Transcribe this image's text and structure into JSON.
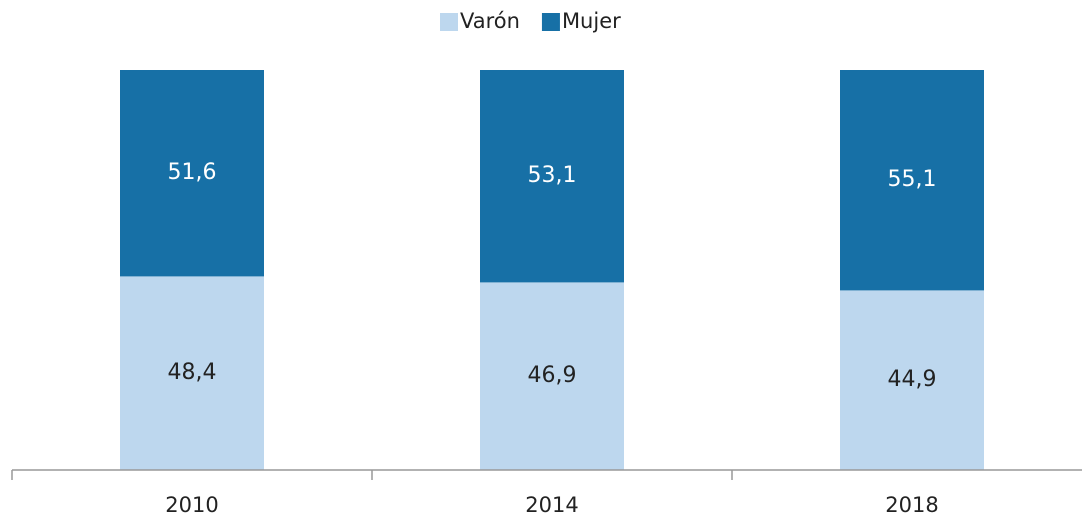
{
  "chart_data": {
    "type": "stacked_bar",
    "categories": [
      "2010",
      "2014",
      "2018"
    ],
    "series": [
      {
        "name": "Varón",
        "color": "#bdd7ee",
        "values": [
          48.4,
          46.9,
          44.9
        ],
        "value_labels": [
          "48,4",
          "46,9",
          "44,9"
        ]
      },
      {
        "name": "Mujer",
        "color": "#1770a6",
        "values": [
          51.6,
          53.1,
          55.1
        ],
        "value_labels": [
          "51,6",
          "53,1",
          "55,1"
        ]
      }
    ],
    "ylim": [
      0,
      100
    ],
    "legend": "top"
  }
}
